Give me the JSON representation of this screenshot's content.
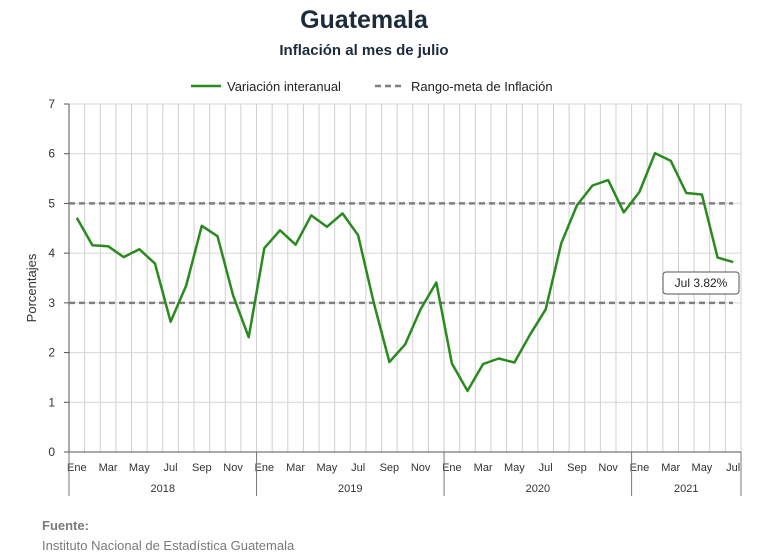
{
  "chart_data": {
    "type": "line",
    "title": "Guatemala",
    "subtitle": "Inflación al mes de julio",
    "ylabel": "Porcentajes",
    "ylim": [
      0,
      7
    ],
    "yticks": [
      0,
      1,
      2,
      3,
      4,
      5,
      6,
      7
    ],
    "grid": true,
    "legend_position": "top",
    "month_tick_labels": [
      "Ene",
      "Mar",
      "May",
      "Jul",
      "Sep",
      "Nov",
      "Ene",
      "Mar",
      "May",
      "Jul",
      "Sep",
      "Nov",
      "Ene",
      "Mar",
      "May",
      "Jul",
      "Sep",
      "Nov",
      "Ene",
      "Mar",
      "May",
      "Jul"
    ],
    "years": [
      "2018",
      "2019",
      "2020",
      "2021"
    ],
    "months_per_year": [
      12,
      12,
      12,
      7
    ],
    "series": [
      {
        "name": "Variación interanual",
        "color": "#2a8a1f",
        "style": "solid",
        "values": [
          4.71,
          4.16,
          4.14,
          3.92,
          4.08,
          3.79,
          2.62,
          3.35,
          4.55,
          4.34,
          3.15,
          2.31,
          4.1,
          4.46,
          4.17,
          4.76,
          4.53,
          4.8,
          4.36,
          3.01,
          1.81,
          2.16,
          2.87,
          3.41,
          1.78,
          1.23,
          1.77,
          1.88,
          1.8,
          2.36,
          2.87,
          4.2,
          4.96,
          5.36,
          5.47,
          4.82,
          5.23,
          6.01,
          5.86,
          5.21,
          5.18,
          3.91,
          3.82
        ]
      },
      {
        "name": "Rango-meta de Inflación",
        "color": "#7f7f7f",
        "style": "dashed",
        "upper": 5,
        "lower": 3
      }
    ],
    "annotation": "Jul 3.82%"
  },
  "source": {
    "label": "Fuente:",
    "text": "Instituto Nacional de Estadística Guatemala"
  }
}
